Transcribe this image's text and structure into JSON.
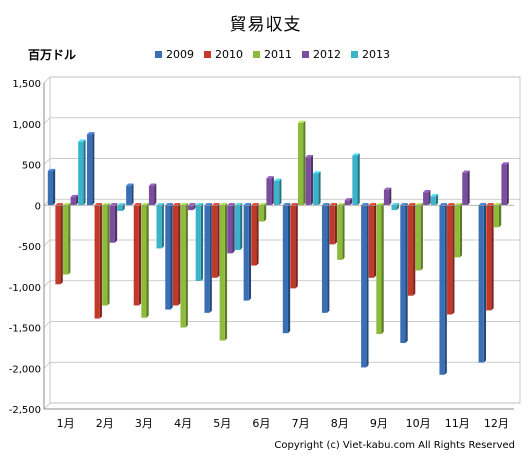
{
  "chart_data": {
    "type": "bar",
    "title": "貿易収支",
    "ylabel": "百万ドル",
    "categories": [
      "1月",
      "2月",
      "3月",
      "4月",
      "5月",
      "6月",
      "7月",
      "8月",
      "9月",
      "10月",
      "11月",
      "12月"
    ],
    "ylim": [
      -2500,
      1500
    ],
    "yticks": [
      1500,
      1000,
      500,
      0,
      -500,
      -1000,
      -1500,
      -2000,
      -2500
    ],
    "ytick_labels": [
      "1,500",
      "1,000",
      "500",
      "0",
      "-500",
      "-1,000",
      "-1,500",
      "-2,000",
      "-2,500"
    ],
    "legend_position": "top",
    "series": [
      {
        "name": "2009",
        "color": "#3a6fb5",
        "values": [
          420,
          870,
          240,
          -1280,
          -1320,
          -1170,
          -1570,
          -1320,
          -1990,
          -1690,
          -2080,
          -1930
        ]
      },
      {
        "name": "2010",
        "color": "#c0392b",
        "values": [
          -970,
          -1390,
          -1230,
          -1230,
          -890,
          -740,
          -1020,
          -480,
          -890,
          -1110,
          -1340,
          -1290
        ]
      },
      {
        "name": "2011",
        "color": "#8dbb3c",
        "values": [
          -850,
          -1230,
          -1380,
          -1500,
          -1660,
          -200,
          1010,
          -670,
          -1580,
          -800,
          -640,
          -270
        ]
      },
      {
        "name": "2012",
        "color": "#7a4d9e",
        "values": [
          100,
          -460,
          240,
          -60,
          -590,
          330,
          590,
          60,
          190,
          160,
          400,
          500
        ]
      },
      {
        "name": "2013",
        "color": "#3bb3c9",
        "values": [
          780,
          -70,
          -530,
          -930,
          -550,
          300,
          390,
          610,
          -60,
          110,
          null,
          null
        ]
      }
    ]
  },
  "copyright": "Copyright (c) Viet-kabu.com All Rights Reserved"
}
